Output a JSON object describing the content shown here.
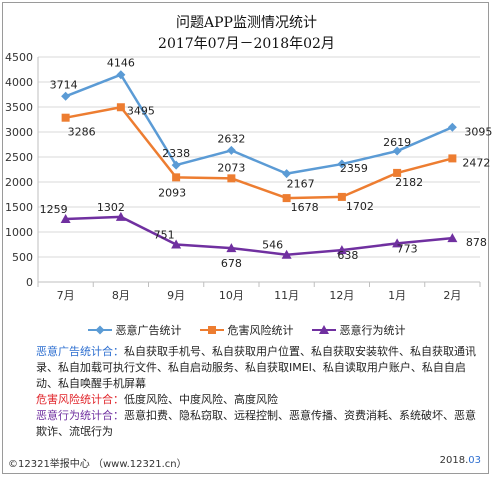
{
  "chart_data": {
    "type": "line",
    "title": "问题APP监测情况统计",
    "subtitle": "2017年07月－2018年02月",
    "categories": [
      "7月",
      "8月",
      "9月",
      "10月",
      "11月",
      "12月",
      "1月",
      "2月"
    ],
    "ylim": [
      0,
      4500
    ],
    "yticks": [
      0,
      500,
      1000,
      1500,
      2000,
      2500,
      3000,
      3500,
      4000,
      4500
    ],
    "grid": true,
    "legend_position": "bottom",
    "series": [
      {
        "name": "恶意广告统计",
        "color": "#5b9bd5",
        "marker": "diamond",
        "values": [
          3714,
          4146,
          2338,
          2632,
          2167,
          2359,
          2619,
          3095
        ]
      },
      {
        "name": "危害风险统计",
        "color": "#ed7d31",
        "marker": "square",
        "values": [
          3286,
          3495,
          2093,
          2073,
          1678,
          1702,
          2182,
          2472
        ]
      },
      {
        "name": "恶意行为统计",
        "color": "#7030a0",
        "marker": "triangle",
        "values": [
          1259,
          1302,
          751,
          678,
          546,
          638,
          773,
          878
        ]
      }
    ]
  },
  "notes": [
    {
      "key": "恶意广告统计合：",
      "key_color": "#2e6fd0",
      "text": "私自获取手机号、私自获取用户位置、私自获取安装软件、私自获取通讯录、私自加载可执行文件、私自启动服务、私自获取IMEI、私自读取用户账户、私自自启动、私自唤醒手机屏幕"
    },
    {
      "key": "危害风险统计合：",
      "key_color": "#e0242a",
      "text": "低度风险、中度风险、高度风险"
    },
    {
      "key": "恶意行为统计合：",
      "key_color": "#7030a0",
      "text": "恶意扣费、隐私窃取、远程控制、恶意传播、资费消耗、系统破坏、恶意欺诈、流氓行为"
    }
  ],
  "footer": {
    "left": "©12321举报中心 （www.12321.cn）",
    "right_prefix": "2018.",
    "right_highlight": "03"
  }
}
